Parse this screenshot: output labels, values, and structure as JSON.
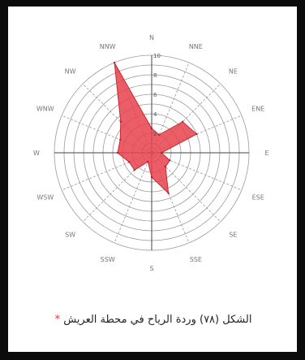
{
  "chart_data": {
    "type": "radar",
    "directions": [
      "N",
      "NNE",
      "NE",
      "ENE",
      "E",
      "ESE",
      "SE",
      "SSE",
      "S",
      "SSW",
      "SW",
      "WSW",
      "W",
      "WNW",
      "NW",
      "NNW"
    ],
    "values": [
      2.5,
      2.0,
      4.5,
      5.0,
      1.0,
      2.0,
      2.0,
      4.5,
      2.5,
      1.0,
      2.5,
      2.5,
      3.5,
      3.5,
      4.5,
      10.0
    ],
    "rticks": [
      "2",
      "4",
      "6",
      "8",
      "10"
    ],
    "rmax": 10,
    "fill_color": "#e8424c",
    "grid_color": "#9a9a9a"
  },
  "caption": {
    "text": "الشكل (٧٨) وردة الرياح في محطة العريش",
    "marker": "*"
  }
}
